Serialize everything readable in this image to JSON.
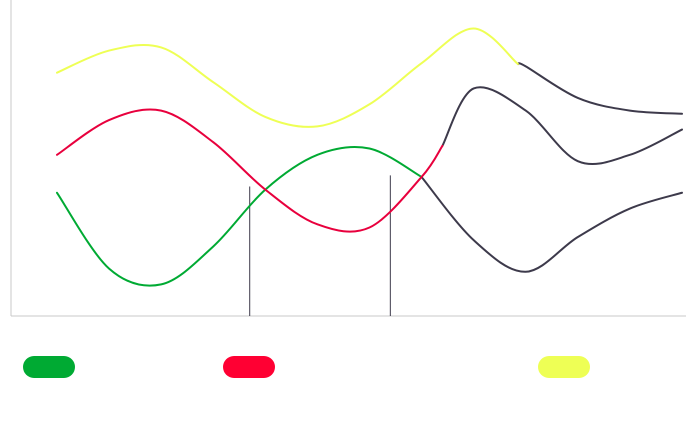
{
  "chart_data": {
    "type": "line",
    "title": "",
    "xlabel": "",
    "ylabel": "",
    "grid": false,
    "x_axis_visible": true,
    "y_axis_visible": true,
    "legend_placement": "bottom",
    "base_line_color": "#3d3a4b",
    "x_range": [
      0,
      12
    ],
    "y_range": [
      0,
      10
    ],
    "series": [
      {
        "key": "green",
        "color": "#00aa33",
        "x": [
          0,
          1,
          2,
          3,
          4,
          5,
          6,
          7,
          8,
          9,
          10,
          11,
          12
        ],
        "y": [
          3.9,
          1.5,
          1.0,
          2.2,
          4.0,
          5.1,
          5.3,
          4.4,
          2.4,
          1.4,
          2.5,
          3.4,
          3.9
        ],
        "highlight_x_range": [
          0,
          7
        ]
      },
      {
        "key": "red",
        "color": "#e8003d",
        "x": [
          0,
          1,
          2,
          3,
          4,
          5,
          6,
          7,
          8,
          9,
          10,
          11,
          12
        ],
        "y": [
          5.1,
          6.2,
          6.5,
          5.5,
          4.0,
          2.9,
          2.8,
          4.4,
          7.2,
          6.5,
          4.9,
          5.1,
          5.9
        ],
        "highlight_x_range": [
          0,
          7.4
        ]
      },
      {
        "key": "yellow",
        "color": "#eeff55",
        "x": [
          0,
          1,
          2,
          3,
          4,
          5,
          6,
          7,
          8,
          9,
          10,
          11,
          12
        ],
        "y": [
          7.7,
          8.4,
          8.5,
          7.4,
          6.3,
          6.0,
          6.7,
          8.0,
          9.1,
          7.9,
          6.9,
          6.5,
          6.4
        ],
        "highlight_x_range": [
          0,
          8.85
        ]
      }
    ],
    "vertical_markers": [
      {
        "x": 3.7,
        "y_top": 4.1
      },
      {
        "x": 6.4,
        "y_top": 4.45
      }
    ],
    "legend": [
      {
        "series": "green",
        "color": "#00aa33"
      },
      {
        "series": "red",
        "color": "#ff0033"
      },
      {
        "series": "yellow",
        "color": "#eeff55"
      }
    ]
  }
}
